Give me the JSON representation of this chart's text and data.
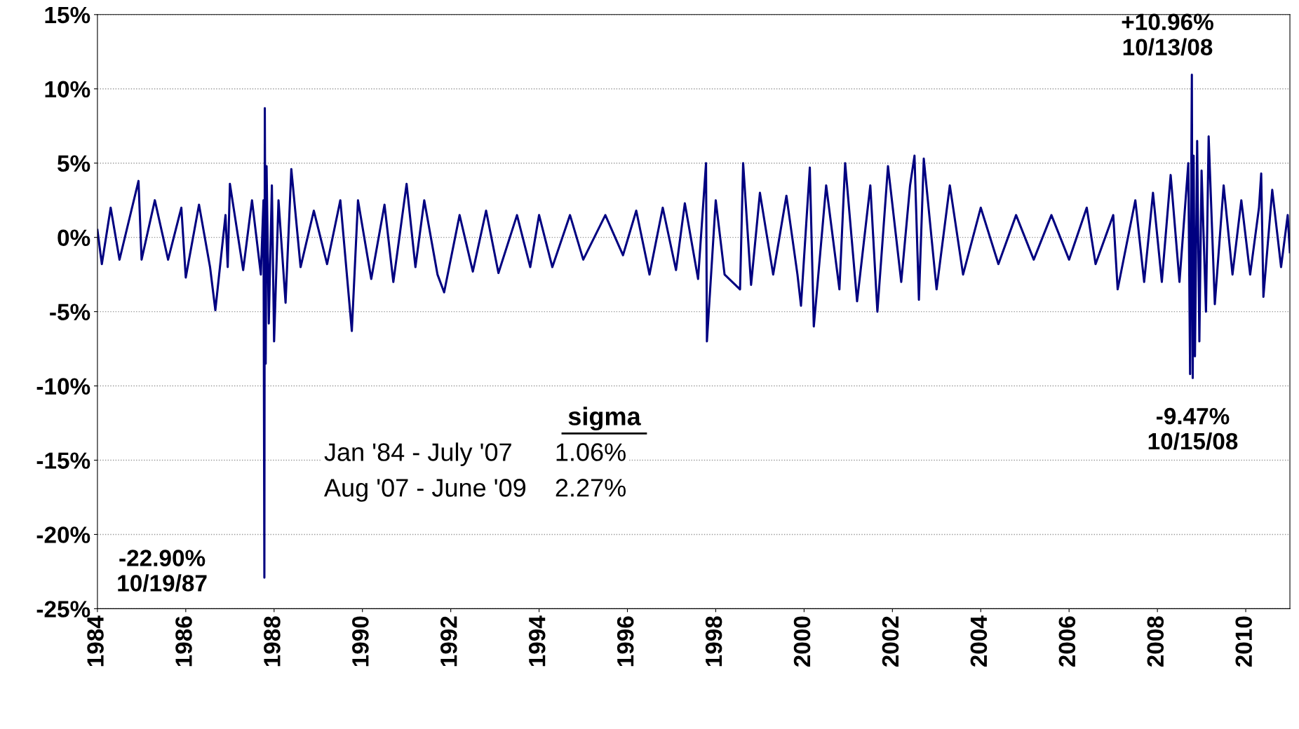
{
  "chart_data": {
    "type": "line",
    "xlim": [
      1984,
      2011
    ],
    "ylim": [
      -25,
      15
    ],
    "xticks": [
      1984,
      1986,
      1988,
      1990,
      1992,
      1994,
      1996,
      1998,
      2000,
      2002,
      2004,
      2006,
      2008,
      2010
    ],
    "yticks": [
      {
        "value": -25,
        "label": "-25%"
      },
      {
        "value": -20,
        "label": "-20%"
      },
      {
        "value": -15,
        "label": "-15%"
      },
      {
        "value": -10,
        "label": "-10%"
      },
      {
        "value": -5,
        "label": "-5%"
      },
      {
        "value": 0,
        "label": "0%"
      },
      {
        "value": 5,
        "label": "5%"
      },
      {
        "value": 10,
        "label": "10%"
      },
      {
        "value": 15,
        "label": "15%"
      }
    ],
    "grid": "y",
    "marker": "none",
    "line_style": "solid",
    "series": [
      {
        "color": "#000080",
        "x": [
          1984.0,
          1984.1,
          1984.3,
          1984.5,
          1984.93,
          1985.0,
          1985.3,
          1985.6,
          1985.9,
          1986.0,
          1986.3,
          1986.55,
          1986.67,
          1986.9,
          1986.95,
          1987.0,
          1987.3,
          1987.5,
          1987.7,
          1987.76,
          1987.78,
          1987.79,
          1987.81,
          1987.83,
          1987.88,
          1987.95,
          1988.0,
          1988.1,
          1988.26,
          1988.39,
          1988.6,
          1988.9,
          1989.2,
          1989.5,
          1989.76,
          1989.9,
          1990.2,
          1990.5,
          1990.7,
          1991.0,
          1991.2,
          1991.4,
          1991.7,
          1991.85,
          1992.2,
          1992.5,
          1992.8,
          1993.08,
          1993.5,
          1993.8,
          1994.0,
          1994.3,
          1994.7,
          1995.0,
          1995.5,
          1995.9,
          1996.2,
          1996.5,
          1996.8,
          1997.1,
          1997.3,
          1997.6,
          1997.78,
          1997.8,
          1998.0,
          1998.2,
          1998.55,
          1998.62,
          1998.8,
          1999.0,
          1999.3,
          1999.6,
          1999.85,
          1999.93,
          2000.13,
          2000.22,
          2000.5,
          2000.8,
          2000.93,
          2001.2,
          2001.5,
          2001.66,
          2001.9,
          2002.2,
          2002.4,
          2002.5,
          2002.6,
          2002.71,
          2003.0,
          2003.3,
          2003.6,
          2004.0,
          2004.4,
          2004.8,
          2005.2,
          2005.6,
          2006.0,
          2006.4,
          2006.6,
          2007.0,
          2007.1,
          2007.5,
          2007.7,
          2007.9,
          2008.1,
          2008.3,
          2008.5,
          2008.7,
          2008.74,
          2008.78,
          2008.8,
          2008.82,
          2008.85,
          2008.9,
          2008.95,
          2009.0,
          2009.1,
          2009.16,
          2009.3,
          2009.5,
          2009.7,
          2009.9,
          2010.1,
          2010.3,
          2010.35,
          2010.4,
          2010.6,
          2010.8,
          2010.95,
          2011.0
        ],
        "values": [
          0.5,
          -1.8,
          2.0,
          -1.5,
          3.8,
          -1.5,
          2.5,
          -1.5,
          2.0,
          -2.7,
          2.2,
          -2.0,
          -4.9,
          1.5,
          -2.0,
          3.6,
          -2.2,
          2.5,
          -2.5,
          2.5,
          -22.9,
          8.7,
          -8.5,
          4.8,
          -5.8,
          3.5,
          -7.0,
          2.5,
          -4.4,
          4.6,
          -2.0,
          1.8,
          -1.8,
          2.5,
          -6.3,
          2.5,
          -2.8,
          2.2,
          -3.0,
          3.6,
          -2.0,
          2.5,
          -2.5,
          -3.7,
          1.5,
          -2.3,
          1.8,
          -2.4,
          1.5,
          -2.0,
          1.5,
          -2.0,
          1.5,
          -1.5,
          1.5,
          -1.2,
          1.8,
          -2.5,
          2.0,
          -2.2,
          2.3,
          -2.8,
          5.0,
          -7.0,
          2.5,
          -2.5,
          -3.5,
          5.0,
          -3.2,
          3.0,
          -2.5,
          2.8,
          -2.5,
          -4.6,
          4.7,
          -6.0,
          3.5,
          -3.5,
          5.0,
          -4.3,
          3.5,
          -5.0,
          4.8,
          -3.0,
          3.5,
          5.5,
          -4.2,
          5.3,
          -3.5,
          3.5,
          -2.5,
          2.0,
          -1.8,
          1.5,
          -1.5,
          1.5,
          -1.5,
          2.0,
          -1.8,
          1.5,
          -3.5,
          2.5,
          -3.0,
          3.0,
          -3.0,
          4.2,
          -3.0,
          5.0,
          -9.2,
          10.96,
          -9.47,
          5.5,
          -8.0,
          6.5,
          -7.0,
          4.5,
          -5.0,
          6.8,
          -4.5,
          3.5,
          -2.5,
          2.5,
          -2.5,
          2.0,
          4.3,
          -4.0,
          3.2,
          -2.0,
          1.5,
          -1.0
        ]
      }
    ],
    "annotations": [
      {
        "text": "-22.90%\n10/19/87",
        "x": 1987.78,
        "y": -22.9
      },
      {
        "text": "+10.96%\n10/13/08",
        "x": 2008.78,
        "y": 10.96
      },
      {
        "text": "-9.47%\n10/15/08",
        "x": 2008.8,
        "y": -9.47
      },
      "sigma",
      "Jan '84 - July '07      1.06%",
      "Aug '07 - June '09    2.27%"
    ]
  }
}
